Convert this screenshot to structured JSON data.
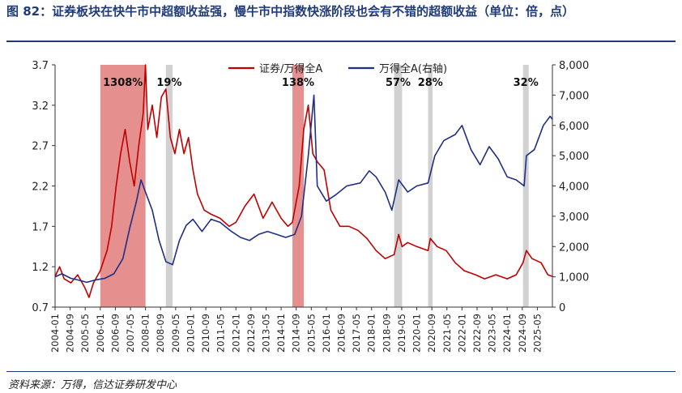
{
  "header": {
    "title": "图 82：证券板块在快牛市中超额收益强，慢牛市中指数快涨阶段也会有不错的超额收益（单位：倍，点）"
  },
  "footer": {
    "source": "资料来源：万得，信达证券研发中心"
  },
  "colors": {
    "title": "#1f3b7a",
    "series_red": "#c00000",
    "series_blue": "#1f2f86",
    "band_strong": "#e07b7b",
    "band_weak": "#cccccc"
  },
  "chart_data": {
    "type": "line",
    "x_tick_labels": [
      "2004-01",
      "2004-09",
      "2005-05",
      "2006-01",
      "2006-09",
      "2007-05",
      "2008-01",
      "2008-09",
      "2009-05",
      "2010-01",
      "2010-09",
      "2011-05",
      "2012-01",
      "2012-09",
      "2013-05",
      "2014-01",
      "2014-09",
      "2015-05",
      "2016-01",
      "2016-09",
      "2017-05",
      "2018-01",
      "2018-09",
      "2019-05",
      "2020-01",
      "2020-09",
      "2021-05",
      "2022-01",
      "2022-09",
      "2023-05",
      "2024-01",
      "2024-09",
      "2025-05"
    ],
    "x_range": [
      2004.0,
      2026.0
    ],
    "y_left": {
      "min": 0.7,
      "max": 3.7,
      "ticks": [
        "0.7",
        "1.2",
        "1.7",
        "2.2",
        "2.7",
        "3.2",
        "3.7"
      ]
    },
    "y_right": {
      "min": 0,
      "max": 8000,
      "ticks": [
        "0",
        "1,000",
        "2,000",
        "3,000",
        "4,000",
        "5,000",
        "6,000",
        "7,000",
        "8,000"
      ]
    },
    "legend": [
      {
        "name": "证券/万得全A",
        "color": "#c00000"
      },
      {
        "name": "万得全A(右轴)",
        "color": "#1f2f86"
      }
    ],
    "bands": [
      {
        "start": 2006.0,
        "end": 2008.0,
        "label": "1308%",
        "style": "strong"
      },
      {
        "start": 2008.9,
        "end": 2009.2,
        "label": "19%",
        "style": "weak"
      },
      {
        "start": 2014.5,
        "end": 2015.0,
        "label": "138%",
        "style": "strong"
      },
      {
        "start": 2019.0,
        "end": 2019.35,
        "label": "57%",
        "style": "weak"
      },
      {
        "start": 2020.5,
        "end": 2020.7,
        "label": "28%",
        "style": "weak"
      },
      {
        "start": 2024.7,
        "end": 2024.95,
        "label": "32%",
        "style": "weak"
      }
    ],
    "series": [
      {
        "name": "证券/万得全A",
        "axis": "left",
        "points": [
          [
            2004.0,
            1.08
          ],
          [
            2004.2,
            1.2
          ],
          [
            2004.4,
            1.05
          ],
          [
            2004.7,
            1.0
          ],
          [
            2005.0,
            1.1
          ],
          [
            2005.3,
            0.95
          ],
          [
            2005.5,
            0.82
          ],
          [
            2005.7,
            1.0
          ],
          [
            2006.0,
            1.15
          ],
          [
            2006.3,
            1.4
          ],
          [
            2006.5,
            1.7
          ],
          [
            2006.7,
            2.2
          ],
          [
            2006.9,
            2.6
          ],
          [
            2007.1,
            2.9
          ],
          [
            2007.3,
            2.5
          ],
          [
            2007.5,
            2.2
          ],
          [
            2007.7,
            2.7
          ],
          [
            2007.9,
            3.1
          ],
          [
            2008.0,
            3.7
          ],
          [
            2008.1,
            2.9
          ],
          [
            2008.3,
            3.2
          ],
          [
            2008.5,
            2.8
          ],
          [
            2008.7,
            3.3
          ],
          [
            2008.9,
            3.4
          ],
          [
            2009.1,
            2.8
          ],
          [
            2009.3,
            2.6
          ],
          [
            2009.5,
            2.9
          ],
          [
            2009.7,
            2.6
          ],
          [
            2009.9,
            2.8
          ],
          [
            2010.1,
            2.4
          ],
          [
            2010.3,
            2.1
          ],
          [
            2010.6,
            1.9
          ],
          [
            2010.9,
            1.85
          ],
          [
            2011.3,
            1.8
          ],
          [
            2011.7,
            1.7
          ],
          [
            2012.0,
            1.75
          ],
          [
            2012.4,
            1.95
          ],
          [
            2012.8,
            2.1
          ],
          [
            2013.2,
            1.8
          ],
          [
            2013.6,
            2.0
          ],
          [
            2014.0,
            1.8
          ],
          [
            2014.3,
            1.7
          ],
          [
            2014.5,
            1.75
          ],
          [
            2014.8,
            2.2
          ],
          [
            2015.0,
            2.9
          ],
          [
            2015.2,
            3.2
          ],
          [
            2015.4,
            2.6
          ],
          [
            2015.6,
            2.5
          ],
          [
            2015.9,
            2.4
          ],
          [
            2016.2,
            1.9
          ],
          [
            2016.6,
            1.7
          ],
          [
            2017.0,
            1.7
          ],
          [
            2017.4,
            1.65
          ],
          [
            2017.8,
            1.55
          ],
          [
            2018.2,
            1.4
          ],
          [
            2018.6,
            1.3
          ],
          [
            2019.0,
            1.35
          ],
          [
            2019.2,
            1.6
          ],
          [
            2019.35,
            1.45
          ],
          [
            2019.6,
            1.5
          ],
          [
            2020.0,
            1.45
          ],
          [
            2020.5,
            1.4
          ],
          [
            2020.6,
            1.55
          ],
          [
            2020.9,
            1.45
          ],
          [
            2021.3,
            1.4
          ],
          [
            2021.7,
            1.25
          ],
          [
            2022.1,
            1.15
          ],
          [
            2022.6,
            1.1
          ],
          [
            2023.0,
            1.05
          ],
          [
            2023.5,
            1.1
          ],
          [
            2024.0,
            1.05
          ],
          [
            2024.4,
            1.1
          ],
          [
            2024.7,
            1.25
          ],
          [
            2024.85,
            1.4
          ],
          [
            2025.1,
            1.3
          ],
          [
            2025.5,
            1.25
          ],
          [
            2025.8,
            1.1
          ],
          [
            2026.0,
            1.08
          ]
        ]
      },
      {
        "name": "万得全A(右轴)",
        "axis": "right",
        "points": [
          [
            2004.0,
            1000
          ],
          [
            2004.3,
            1100
          ],
          [
            2004.7,
            950
          ],
          [
            2005.0,
            900
          ],
          [
            2005.4,
            820
          ],
          [
            2005.8,
            900
          ],
          [
            2006.2,
            950
          ],
          [
            2006.6,
            1100
          ],
          [
            2007.0,
            1600
          ],
          [
            2007.3,
            2600
          ],
          [
            2007.6,
            3500
          ],
          [
            2007.8,
            4200
          ],
          [
            2008.0,
            3800
          ],
          [
            2008.3,
            3200
          ],
          [
            2008.6,
            2200
          ],
          [
            2008.9,
            1500
          ],
          [
            2009.2,
            1400
          ],
          [
            2009.5,
            2200
          ],
          [
            2009.8,
            2700
          ],
          [
            2010.1,
            2900
          ],
          [
            2010.5,
            2500
          ],
          [
            2010.9,
            2900
          ],
          [
            2011.3,
            2800
          ],
          [
            2011.8,
            2500
          ],
          [
            2012.2,
            2300
          ],
          [
            2012.6,
            2200
          ],
          [
            2013.0,
            2400
          ],
          [
            2013.4,
            2500
          ],
          [
            2013.8,
            2400
          ],
          [
            2014.2,
            2300
          ],
          [
            2014.6,
            2400
          ],
          [
            2014.9,
            3000
          ],
          [
            2015.2,
            5000
          ],
          [
            2015.45,
            7000
          ],
          [
            2015.6,
            4000
          ],
          [
            2016.0,
            3500
          ],
          [
            2016.4,
            3700
          ],
          [
            2016.9,
            4000
          ],
          [
            2017.5,
            4100
          ],
          [
            2017.9,
            4500
          ],
          [
            2018.2,
            4300
          ],
          [
            2018.6,
            3800
          ],
          [
            2018.9,
            3200
          ],
          [
            2019.2,
            4200
          ],
          [
            2019.6,
            3800
          ],
          [
            2020.0,
            4000
          ],
          [
            2020.5,
            4100
          ],
          [
            2020.8,
            5000
          ],
          [
            2021.2,
            5500
          ],
          [
            2021.7,
            5700
          ],
          [
            2022.0,
            6000
          ],
          [
            2022.4,
            5200
          ],
          [
            2022.8,
            4700
          ],
          [
            2023.2,
            5300
          ],
          [
            2023.6,
            4900
          ],
          [
            2024.0,
            4300
          ],
          [
            2024.4,
            4200
          ],
          [
            2024.75,
            4000
          ],
          [
            2024.85,
            5000
          ],
          [
            2025.2,
            5200
          ],
          [
            2025.6,
            6000
          ],
          [
            2025.9,
            6300
          ],
          [
            2026.0,
            6200
          ]
        ]
      }
    ]
  }
}
